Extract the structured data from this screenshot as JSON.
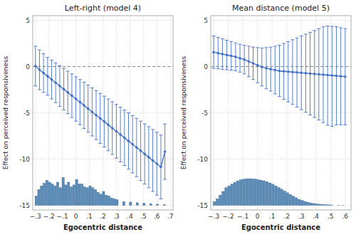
{
  "chart_data": [
    {
      "type": "line",
      "title": "Left-right (model 4)",
      "xlabel": "Egocentric distance",
      "ylabel": "Effect on perceived responsiveness",
      "x": [
        -0.3,
        -0.27,
        -0.24,
        -0.21,
        -0.18,
        -0.15,
        -0.12,
        -0.09,
        -0.06,
        -0.03,
        0.0,
        0.03,
        0.06,
        0.09,
        0.12,
        0.15,
        0.18,
        0.21,
        0.24,
        0.27,
        0.3,
        0.33,
        0.36,
        0.39,
        0.42,
        0.45,
        0.48,
        0.51,
        0.54,
        0.57,
        0.6,
        0.63,
        0.66
      ],
      "series": [
        {
          "type": "line",
          "color": "#4472C4",
          "marker": "circle",
          "values": [
            0.05,
            -0.35,
            -0.7,
            -1.05,
            -1.4,
            -1.75,
            -2.1,
            -2.45,
            -2.8,
            -3.15,
            -3.5,
            -3.85,
            -4.2,
            -4.55,
            -4.9,
            -5.25,
            -5.6,
            -5.95,
            -6.3,
            -6.65,
            -7.0,
            -7.35,
            -7.7,
            -8.05,
            -8.4,
            -8.75,
            -9.1,
            -9.45,
            -9.8,
            -10.15,
            -10.5,
            -10.85,
            -9.2
          ],
          "ci_upper": [
            2.2,
            1.8,
            1.4,
            1.0,
            0.7,
            0.4,
            0.1,
            -0.2,
            -0.5,
            -0.8,
            -1.1,
            -1.4,
            -1.7,
            -2.0,
            -2.3,
            -2.6,
            -2.9,
            -3.2,
            -3.5,
            -3.8,
            -4.1,
            -4.4,
            -4.7,
            -5.0,
            -5.3,
            -5.6,
            -5.9,
            -6.2,
            -6.5,
            -6.8,
            -7.1,
            -7.4,
            -6.2
          ],
          "ci_lower": [
            -2.1,
            -2.5,
            -2.8,
            -3.1,
            -3.5,
            -3.9,
            -4.3,
            -4.7,
            -5.1,
            -5.5,
            -5.9,
            -6.3,
            -6.7,
            -7.1,
            -7.5,
            -7.9,
            -8.3,
            -8.7,
            -9.1,
            -9.5,
            -9.9,
            -10.3,
            -10.7,
            -11.1,
            -11.5,
            -11.9,
            -12.3,
            -12.7,
            -13.1,
            -13.5,
            -13.9,
            -14.3,
            -12.2
          ]
        },
        {
          "type": "bar",
          "color": "#5B8DB8",
          "x": [
            -0.295,
            -0.275,
            -0.255,
            -0.235,
            -0.215,
            -0.195,
            -0.175,
            -0.155,
            -0.135,
            -0.115,
            -0.095,
            -0.075,
            -0.055,
            -0.035,
            -0.015,
            0.005,
            0.025,
            0.045,
            0.065,
            0.085,
            0.105,
            0.125,
            0.145,
            0.165,
            0.185,
            0.205,
            0.225,
            0.245,
            0.265,
            0.285,
            0.305,
            0.355,
            0.405,
            0.455,
            0.505,
            0.555,
            0.605,
            0.655
          ],
          "values": [
            1.0,
            1.7,
            2.1,
            2.4,
            2.7,
            2.5,
            2.3,
            2.1,
            2.5,
            1.9,
            3.0,
            2.2,
            2.5,
            2.0,
            2.2,
            2.8,
            2.3,
            2.3,
            2.0,
            1.9,
            2.1,
            1.9,
            1.7,
            1.4,
            1.2,
            1.5,
            1.1,
            1.0,
            0.8,
            0.7,
            0.6,
            0.4,
            0.35,
            0.28,
            0.22,
            0.18,
            0.12,
            0.07
          ],
          "width": 0.017,
          "bottom": -15.0
        }
      ],
      "hline": 0,
      "xlim": [
        -0.32,
        0.72
      ],
      "ylim": [
        -15.5,
        5.5
      ],
      "xticks": [
        {
          "value": -0.3,
          "label": "−.3"
        },
        {
          "value": -0.2,
          "label": "−.2"
        },
        {
          "value": -0.1,
          "label": "−.1"
        },
        0,
        {
          "value": 0.1,
          "label": ".1"
        },
        {
          "value": 0.2,
          "label": ".2"
        },
        {
          "value": 0.3,
          "label": ".3"
        },
        {
          "value": 0.4,
          "label": ".4"
        },
        {
          "value": 0.5,
          "label": ".5"
        },
        {
          "value": 0.6,
          "label": ".6"
        },
        {
          "value": 0.7,
          "label": ".7"
        }
      ],
      "yticks": [
        -15,
        -10,
        -5,
        0,
        5
      ],
      "grid": true
    },
    {
      "type": "line",
      "title": "Mean distance (model 5)",
      "xlabel": "Egocentric distance",
      "ylabel": "Effect on perceived responsiveness",
      "x": [
        -0.3,
        -0.27,
        -0.24,
        -0.21,
        -0.18,
        -0.15,
        -0.12,
        -0.09,
        -0.06,
        -0.03,
        0.0,
        0.03,
        0.06,
        0.09,
        0.12,
        0.15,
        0.18,
        0.21,
        0.24,
        0.27,
        0.3,
        0.33,
        0.36,
        0.39,
        0.42,
        0.45,
        0.48,
        0.51,
        0.54,
        0.57,
        0.6
      ],
      "series": [
        {
          "type": "line",
          "color": "#4472C4",
          "marker": "circle",
          "values": [
            1.55,
            1.45,
            1.35,
            1.25,
            1.15,
            1.05,
            0.9,
            0.75,
            0.55,
            0.35,
            0.15,
            -0.05,
            -0.18,
            -0.28,
            -0.38,
            -0.48,
            -0.52,
            -0.56,
            -0.6,
            -0.64,
            -0.68,
            -0.72,
            -0.76,
            -0.8,
            -0.84,
            -0.88,
            -0.92,
            -0.96,
            -1.0,
            -1.05,
            -1.1
          ],
          "ci_upper": [
            3.3,
            3.15,
            3.0,
            2.85,
            2.7,
            2.55,
            2.4,
            2.3,
            2.2,
            2.1,
            2.05,
            2.0,
            2.05,
            2.1,
            2.2,
            2.3,
            2.5,
            2.7,
            2.9,
            3.1,
            3.3,
            3.5,
            3.7,
            3.9,
            4.1,
            4.3,
            4.4,
            4.35,
            4.3,
            4.2,
            4.1
          ],
          "ci_lower": [
            -0.2,
            -0.25,
            -0.3,
            -0.35,
            -0.4,
            -0.45,
            -0.6,
            -0.8,
            -1.1,
            -1.4,
            -1.75,
            -2.1,
            -2.4,
            -2.65,
            -2.95,
            -3.25,
            -3.55,
            -3.82,
            -4.1,
            -4.38,
            -4.66,
            -4.94,
            -5.22,
            -5.5,
            -5.78,
            -6.06,
            -6.34,
            -6.47,
            -6.3,
            -6.3,
            -6.3
          ]
        },
        {
          "type": "bar",
          "color": "#5B8DB8",
          "x": [
            -0.295,
            -0.275,
            -0.255,
            -0.235,
            -0.215,
            -0.195,
            -0.175,
            -0.155,
            -0.135,
            -0.115,
            -0.095,
            -0.075,
            -0.055,
            -0.035,
            -0.015,
            0.005,
            0.025,
            0.045,
            0.065,
            0.085,
            0.105,
            0.125,
            0.145,
            0.165,
            0.185,
            0.205,
            0.225,
            0.245,
            0.265,
            0.285,
            0.305,
            0.325,
            0.345,
            0.365,
            0.385,
            0.405,
            0.425,
            0.445,
            0.465,
            0.485,
            0.505,
            0.555,
            0.585
          ],
          "values": [
            0.4,
            0.7,
            1.1,
            1.5,
            1.9,
            2.1,
            2.3,
            2.5,
            2.65,
            2.75,
            2.82,
            2.87,
            2.88,
            2.85,
            2.83,
            2.78,
            2.72,
            2.65,
            2.55,
            2.42,
            2.28,
            2.1,
            1.92,
            1.74,
            1.55,
            1.36,
            1.17,
            0.98,
            0.82,
            0.65,
            0.52,
            0.42,
            0.33,
            0.26,
            0.2,
            0.16,
            0.12,
            0.09,
            0.07,
            0.05,
            0.04,
            0.02,
            0.01
          ],
          "width": 0.017,
          "bottom": -15.0
        }
      ],
      "hline": 0,
      "xlim": [
        -0.32,
        0.64
      ],
      "ylim": [
        -15.5,
        5.5
      ],
      "xticks": [
        {
          "value": -0.3,
          "label": "−.3"
        },
        {
          "value": -0.2,
          "label": "−.2"
        },
        {
          "value": -0.1,
          "label": "−.1"
        },
        0,
        {
          "value": 0.1,
          "label": ".1"
        },
        {
          "value": 0.2,
          "label": ".2"
        },
        {
          "value": 0.3,
          "label": ".3"
        },
        {
          "value": 0.4,
          "label": ".4"
        },
        {
          "value": 0.5,
          "label": ".5"
        },
        {
          "value": 0.6,
          "label": ".6"
        }
      ],
      "yticks": [
        -15,
        -10,
        -5,
        0,
        5
      ],
      "grid": true
    }
  ]
}
